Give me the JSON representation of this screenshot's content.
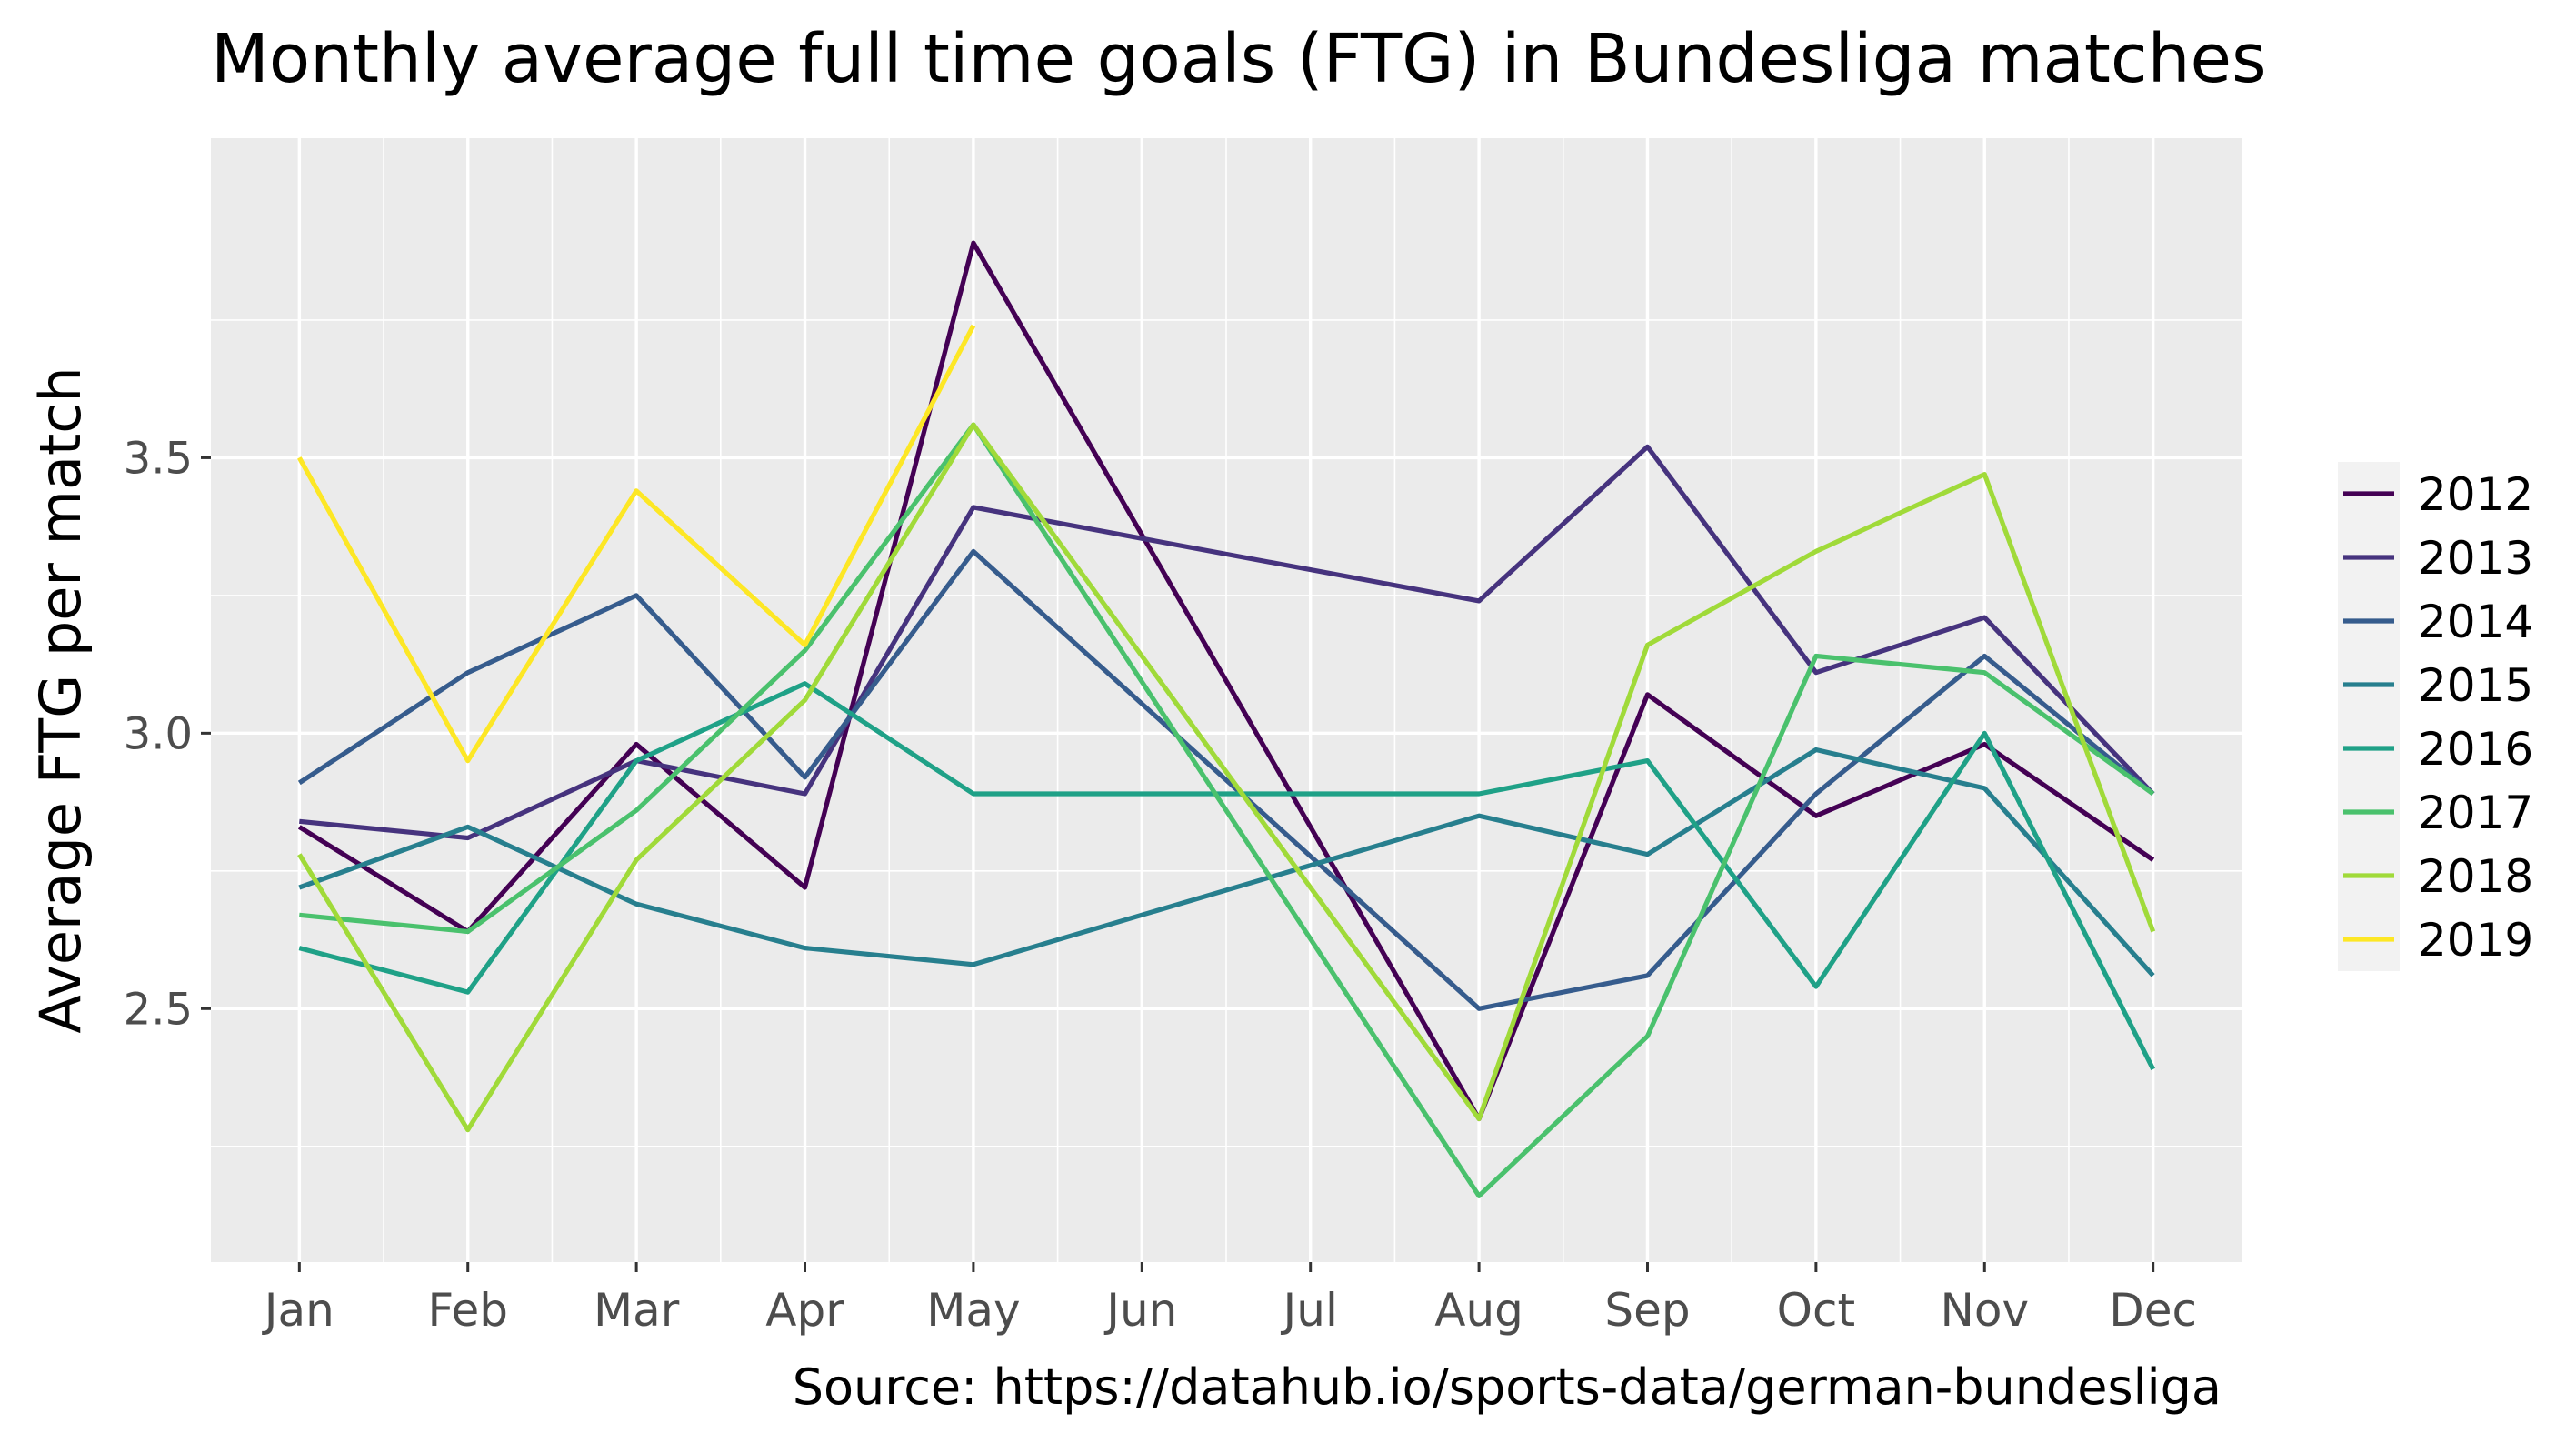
{
  "chart_data": {
    "type": "line",
    "title": "Monthly average full time goals (FTG) in Bundesliga matches",
    "caption": "Source: https://datahub.io/sports-data/german-bundesliga",
    "xlabel": "",
    "ylabel": "Average FTG per match",
    "categories": [
      "Jan",
      "Feb",
      "Mar",
      "Apr",
      "May",
      "Jun",
      "Jul",
      "Aug",
      "Sep",
      "Oct",
      "Nov",
      "Dec"
    ],
    "ylim": [
      2.04,
      4.08
    ],
    "yticks": [
      2.5,
      3.0,
      3.5
    ],
    "ytick_labels": [
      "2.5",
      "3.0",
      "3.5"
    ],
    "grid": true,
    "legend_position": "right",
    "series": [
      {
        "name": "2012",
        "color": "#440154",
        "values": [
          2.83,
          2.64,
          2.98,
          2.72,
          3.89,
          null,
          null,
          2.3,
          3.07,
          2.85,
          2.98,
          2.77
        ]
      },
      {
        "name": "2013",
        "color": "#46337e",
        "values": [
          2.84,
          2.81,
          2.95,
          2.89,
          3.41,
          null,
          null,
          3.24,
          3.52,
          3.11,
          3.21,
          2.89
        ]
      },
      {
        "name": "2014",
        "color": "#365c8d",
        "values": [
          2.91,
          3.11,
          3.25,
          2.92,
          3.33,
          null,
          null,
          2.5,
          2.56,
          2.89,
          3.14,
          2.89
        ]
      },
      {
        "name": "2015",
        "color": "#277f8e",
        "values": [
          2.72,
          2.83,
          2.69,
          2.61,
          2.58,
          null,
          null,
          2.85,
          2.78,
          2.97,
          2.9,
          2.56
        ]
      },
      {
        "name": "2016",
        "color": "#1fa187",
        "values": [
          2.61,
          2.53,
          2.95,
          3.09,
          2.89,
          null,
          null,
          2.89,
          2.95,
          2.54,
          3.0,
          2.39
        ]
      },
      {
        "name": "2017",
        "color": "#4ac16d",
        "values": [
          2.67,
          2.64,
          2.86,
          3.15,
          3.56,
          null,
          null,
          2.16,
          2.45,
          3.14,
          3.11,
          2.89
        ]
      },
      {
        "name": "2018",
        "color": "#a0da39",
        "values": [
          2.78,
          2.28,
          2.77,
          3.06,
          3.56,
          null,
          null,
          2.3,
          3.16,
          3.33,
          3.47,
          2.64
        ]
      },
      {
        "name": "2019",
        "color": "#fde725",
        "values": [
          3.5,
          2.95,
          3.44,
          3.16,
          3.74,
          null,
          null,
          null,
          null,
          null,
          null,
          null
        ]
      }
    ]
  }
}
